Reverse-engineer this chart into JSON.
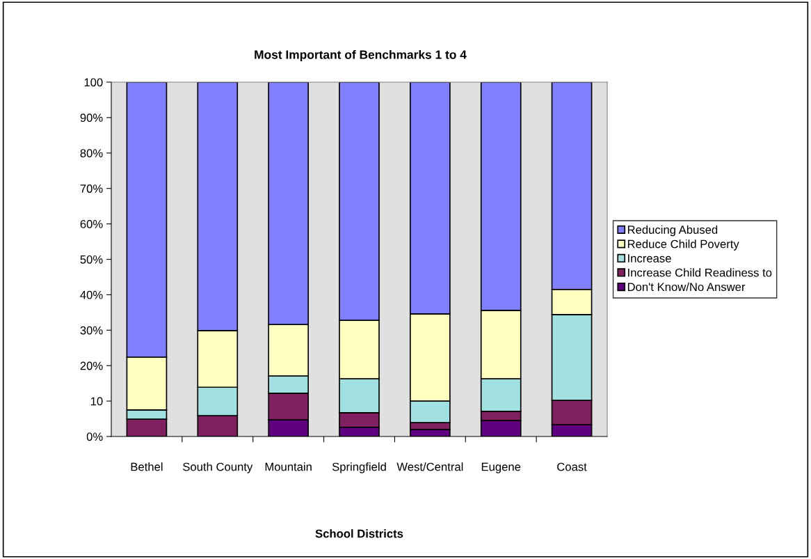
{
  "chart_data": {
    "type": "bar",
    "title": "Most Important of Benchmarks 1 to 4",
    "xlabel": "School Districts",
    "categories": [
      "Bethel",
      "South County",
      "Mountain",
      "Springfield",
      "West/Central",
      "Eugene",
      "Coast"
    ],
    "stacked": true,
    "legend": "right",
    "grid": false,
    "ylim": [
      0,
      100
    ],
    "yticks": [
      {
        "value": 0,
        "label": "0%"
      },
      10,
      {
        "value": 20,
        "label": "20%"
      },
      {
        "value": 30,
        "label": "30%"
      },
      {
        "value": 40,
        "label": "40%"
      },
      {
        "value": 50,
        "label": "50%"
      },
      {
        "value": 60,
        "label": "60%"
      },
      {
        "value": 70,
        "label": "70%"
      },
      {
        "value": 80,
        "label": "80%"
      },
      {
        "value": 90,
        "label": "90%"
      },
      100
    ],
    "series": [
      {
        "name": "Don't Know/No Answer",
        "color": "#600080",
        "values": [
          0,
          0,
          4.7,
          2.6,
          2.0,
          4.5,
          3.3
        ]
      },
      {
        "name": "Increase Child Readiness to",
        "color": "#802060",
        "values": [
          4.9,
          5.9,
          7.5,
          4.1,
          1.9,
          2.6,
          6.9
        ]
      },
      {
        "name": "Increase",
        "color": "#a0e0e0",
        "values": [
          2.6,
          8.0,
          4.9,
          9.6,
          6.1,
          9.2,
          24.2
        ]
      },
      {
        "name": "Reduce Child Poverty",
        "color": "#ffffc0",
        "values": [
          14.9,
          16.0,
          14.5,
          16.5,
          24.6,
          19.3,
          7.1
        ]
      },
      {
        "name": "Reducing Abused",
        "color": "#8080ff",
        "values": [
          77.6,
          70.1,
          68.4,
          67.2,
          65.4,
          64.4,
          58.5
        ]
      }
    ]
  }
}
